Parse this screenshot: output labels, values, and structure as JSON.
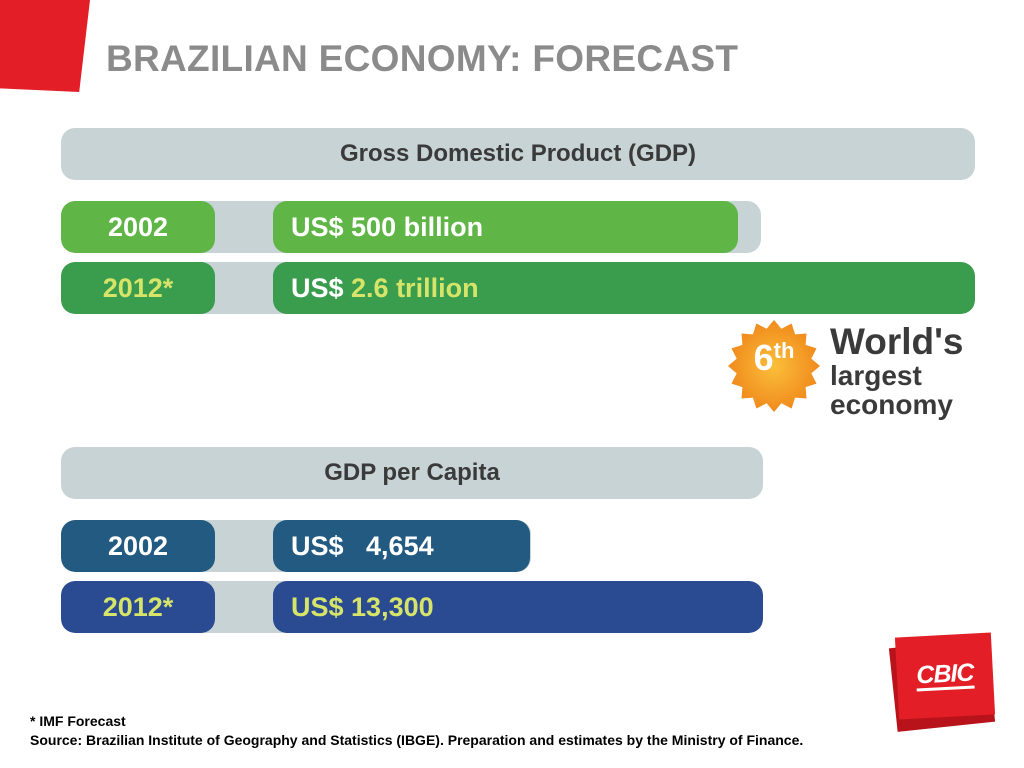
{
  "title": "BRAZILIAN ECONOMY: FORECAST",
  "colors": {
    "accent_red": "#e31e26",
    "header_gray": "#c7d3d4",
    "gdp_2002": "#5fb546",
    "gdp_2012": "#3a9d4e",
    "capita_2002": "#235a82",
    "capita_2012": "#2a4a92",
    "highlight_yellow": "#d6e46a",
    "badge_orange": "#f39a1d"
  },
  "chart_data": [
    {
      "type": "bar",
      "title": "Gross Domestic Product (GDP)",
      "categories": [
        "2002",
        "2012*"
      ],
      "values": [
        500,
        2600
      ],
      "units": "US$ billion",
      "labels": [
        {
          "prefix": "US$ ",
          "amount": "500 billion"
        },
        {
          "prefix": "US$ ",
          "amount": "2.6 trillion"
        }
      ]
    },
    {
      "type": "bar",
      "title": "GDP per Capita",
      "categories": [
        "2002",
        "2012*"
      ],
      "values": [
        4654,
        13300
      ],
      "units": "US$",
      "labels": [
        {
          "prefix": "US$   ",
          "amount": "4,654"
        },
        {
          "prefix": "US$ ",
          "amount": "13,300"
        }
      ]
    }
  ],
  "badge": {
    "rank": "6",
    "suffix": "th",
    "line1": "World's",
    "line2": "largest",
    "line3": "economy"
  },
  "footnote": {
    "line1": "* IMF Forecast",
    "line2": "Source: Brazilian Institute of Geography and Statistics (IBGE). Preparation and estimates by the Ministry of Finance."
  },
  "logo": {
    "text": "CBIC"
  }
}
